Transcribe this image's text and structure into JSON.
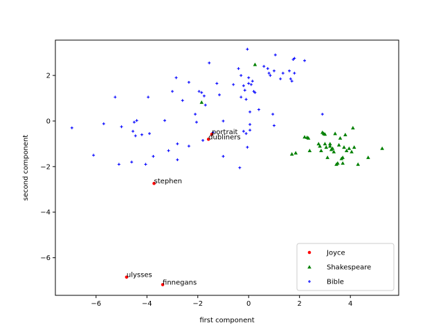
{
  "chart_data": {
    "type": "scatter",
    "title": "",
    "xlabel": "first component",
    "ylabel": "second component",
    "xlim": [
      -7.6,
      5.9
    ],
    "ylim": [
      -7.65,
      3.55
    ],
    "xticks": [
      -6,
      -4,
      -2,
      0,
      2,
      4
    ],
    "yticks": [
      -6,
      -4,
      -2,
      0,
      2
    ],
    "grid": false,
    "legend": "lower-right",
    "series": [
      {
        "name": "Joyce",
        "color": "#ff0000",
        "marker": "circle",
        "points": [
          [
            -1.45,
            -0.58
          ],
          [
            -1.58,
            -0.8
          ],
          [
            -3.72,
            -2.74
          ],
          [
            -4.8,
            -6.85
          ],
          [
            -3.38,
            -7.18
          ]
        ]
      },
      {
        "name": "Shakespeare",
        "color": "#008000",
        "marker": "triangle",
        "points": [
          [
            0.25,
            2.48
          ],
          [
            -1.85,
            0.82
          ],
          [
            2.2,
            -0.7
          ],
          [
            2.35,
            -0.75
          ],
          [
            2.4,
            -1.3
          ],
          [
            2.75,
            -1.0
          ],
          [
            2.8,
            -1.1
          ],
          [
            2.85,
            -1.3
          ],
          [
            2.9,
            -0.5
          ],
          [
            2.95,
            -0.55
          ],
          [
            3.0,
            -0.58
          ],
          [
            3.0,
            -1.0
          ],
          [
            3.05,
            -1.15
          ],
          [
            3.1,
            -1.6
          ],
          [
            3.2,
            -1.1
          ],
          [
            3.25,
            -1.25
          ],
          [
            3.3,
            -1.2
          ],
          [
            3.35,
            -1.35
          ],
          [
            3.4,
            -0.55
          ],
          [
            3.45,
            -1.9
          ],
          [
            3.5,
            -1.85
          ],
          [
            3.55,
            -1.05
          ],
          [
            3.6,
            -0.75
          ],
          [
            3.65,
            -1.65
          ],
          [
            3.7,
            -1.6
          ],
          [
            3.7,
            -1.85
          ],
          [
            3.75,
            -1.15
          ],
          [
            3.8,
            -0.6
          ],
          [
            3.85,
            -1.3
          ],
          [
            3.95,
            -1.2
          ],
          [
            4.05,
            -1.35
          ],
          [
            4.1,
            -0.3
          ],
          [
            4.15,
            -1.15
          ],
          [
            4.3,
            -1.9
          ],
          [
            4.7,
            -1.6
          ],
          [
            5.25,
            -1.2
          ],
          [
            1.7,
            -1.45
          ],
          [
            1.85,
            -1.4
          ],
          [
            3.2,
            -1.0
          ],
          [
            2.3,
            -0.72
          ]
        ]
      },
      {
        "name": "Bible",
        "color": "#0000ff",
        "marker": "plus",
        "points": [
          [
            -6.95,
            -0.3
          ],
          [
            -6.1,
            -1.5
          ],
          [
            -5.7,
            -0.12
          ],
          [
            -5.25,
            1.05
          ],
          [
            -5.1,
            -1.9
          ],
          [
            -5.0,
            -0.25
          ],
          [
            -4.6,
            -1.8
          ],
          [
            -4.55,
            -0.45
          ],
          [
            -4.5,
            -0.05
          ],
          [
            -4.45,
            -0.65
          ],
          [
            -4.4,
            0.02
          ],
          [
            -4.2,
            -0.6
          ],
          [
            -4.05,
            -1.9
          ],
          [
            -3.95,
            1.05
          ],
          [
            -3.9,
            -0.55
          ],
          [
            -3.75,
            -1.55
          ],
          [
            -3.3,
            0.02
          ],
          [
            -3.15,
            -1.3
          ],
          [
            -3.0,
            1.3
          ],
          [
            -2.85,
            1.9
          ],
          [
            -2.8,
            -1.0
          ],
          [
            -2.8,
            -1.7
          ],
          [
            -2.6,
            0.9
          ],
          [
            -2.35,
            1.7
          ],
          [
            -2.35,
            -1.1
          ],
          [
            -2.1,
            0.3
          ],
          [
            -2.05,
            -0.05
          ],
          [
            -1.95,
            1.3
          ],
          [
            -1.85,
            1.25
          ],
          [
            -1.8,
            -0.85
          ],
          [
            -1.75,
            1.1
          ],
          [
            -1.7,
            0.7
          ],
          [
            -1.55,
            2.55
          ],
          [
            -1.4,
            -0.5
          ],
          [
            -1.25,
            1.65
          ],
          [
            -1.15,
            1.15
          ],
          [
            -1.0,
            -1.55
          ],
          [
            -1.0,
            0.0
          ],
          [
            -0.6,
            1.6
          ],
          [
            -0.4,
            2.3
          ],
          [
            -0.35,
            -2.05
          ],
          [
            -0.3,
            1.05
          ],
          [
            -0.3,
            2.0
          ],
          [
            -0.2,
            1.55
          ],
          [
            -0.15,
            1.35
          ],
          [
            -0.1,
            0.95
          ],
          [
            -0.05,
            3.15
          ],
          [
            -0.05,
            -1.15
          ],
          [
            0.0,
            1.9
          ],
          [
            0.0,
            1.65
          ],
          [
            0.05,
            0.4
          ],
          [
            0.05,
            -0.15
          ],
          [
            0.05,
            -0.4
          ],
          [
            0.1,
            1.6
          ],
          [
            0.15,
            1.75
          ],
          [
            0.2,
            1.3
          ],
          [
            0.25,
            1.25
          ],
          [
            0.4,
            0.5
          ],
          [
            0.6,
            2.4
          ],
          [
            0.75,
            2.3
          ],
          [
            0.8,
            2.1
          ],
          [
            0.85,
            2.0
          ],
          [
            0.95,
            0.3
          ],
          [
            1.0,
            2.2
          ],
          [
            1.0,
            -0.2
          ],
          [
            1.05,
            2.9
          ],
          [
            1.25,
            1.85
          ],
          [
            1.35,
            2.1
          ],
          [
            1.6,
            2.2
          ],
          [
            1.65,
            1.85
          ],
          [
            1.7,
            1.75
          ],
          [
            1.75,
            2.7
          ],
          [
            1.8,
            2.1
          ],
          [
            1.8,
            2.75
          ],
          [
            2.2,
            2.65
          ],
          [
            2.9,
            0.3
          ],
          [
            -0.2,
            -0.45
          ],
          [
            -0.1,
            -0.55
          ]
        ]
      }
    ],
    "annotations": [
      {
        "text": "portrait",
        "x": -1.45,
        "y": -0.58
      },
      {
        "text": "dubliners",
        "x": -1.58,
        "y": -0.8
      },
      {
        "text": "stephen",
        "x": -3.72,
        "y": -2.74
      },
      {
        "text": "ulysses",
        "x": -4.8,
        "y": -6.85
      },
      {
        "text": "finnegans",
        "x": -3.38,
        "y": -7.18
      }
    ]
  }
}
